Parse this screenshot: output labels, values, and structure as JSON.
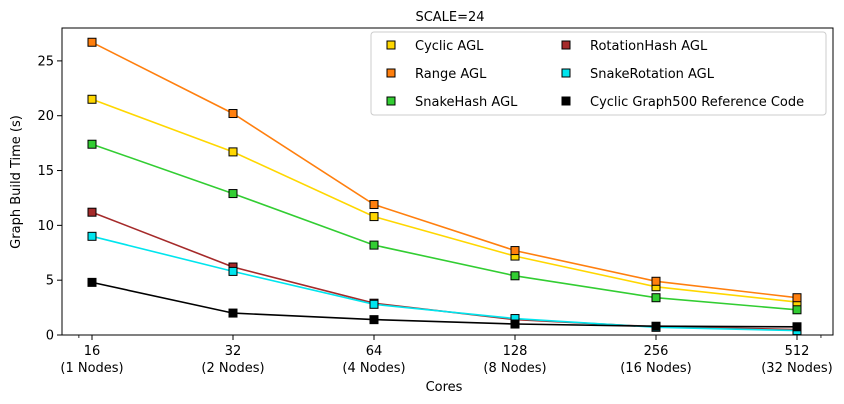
{
  "chart_data": {
    "type": "line",
    "title": "SCALE=24",
    "xlabel": "Cores",
    "ylabel": "Graph Build Time (s)",
    "x_scale": "log2",
    "categories": [
      "16",
      "32",
      "64",
      "128",
      "256",
      "512"
    ],
    "category_sublabels": [
      "(1 Nodes)",
      "(2 Nodes)",
      "(4 Nodes)",
      "(8 Nodes)",
      "(16 Nodes)",
      "(32 Nodes)"
    ],
    "x": [
      16,
      32,
      64,
      128,
      256,
      512
    ],
    "ylim": [
      0,
      28
    ],
    "yticks": [
      "0",
      "5",
      "10",
      "15",
      "20",
      "25"
    ],
    "legend_position": "top-right",
    "series": [
      {
        "name": "Cyclic AGL",
        "color": "#ffd700",
        "values": [
          21.5,
          16.7,
          10.8,
          7.2,
          4.4,
          3.0
        ]
      },
      {
        "name": "Range AGL",
        "color": "#ff7f0e",
        "values": [
          26.7,
          20.2,
          11.9,
          7.7,
          4.9,
          3.4
        ]
      },
      {
        "name": "SnakeHash AGL",
        "color": "#32cd32",
        "values": [
          17.4,
          12.9,
          8.2,
          5.4,
          3.4,
          2.3
        ]
      },
      {
        "name": "RotationHash AGL",
        "color": "#a52a2a",
        "values": [
          11.2,
          6.2,
          2.9,
          1.4,
          0.75,
          0.5
        ]
      },
      {
        "name": "SnakeRotation AGL",
        "color": "#00e5ee",
        "values": [
          9.0,
          5.8,
          2.8,
          1.5,
          0.7,
          0.4
        ]
      },
      {
        "name": "Cyclic Graph500 Reference Code",
        "color": "#000000",
        "values": [
          4.8,
          2.0,
          1.4,
          1.0,
          0.8,
          0.75
        ]
      }
    ]
  }
}
